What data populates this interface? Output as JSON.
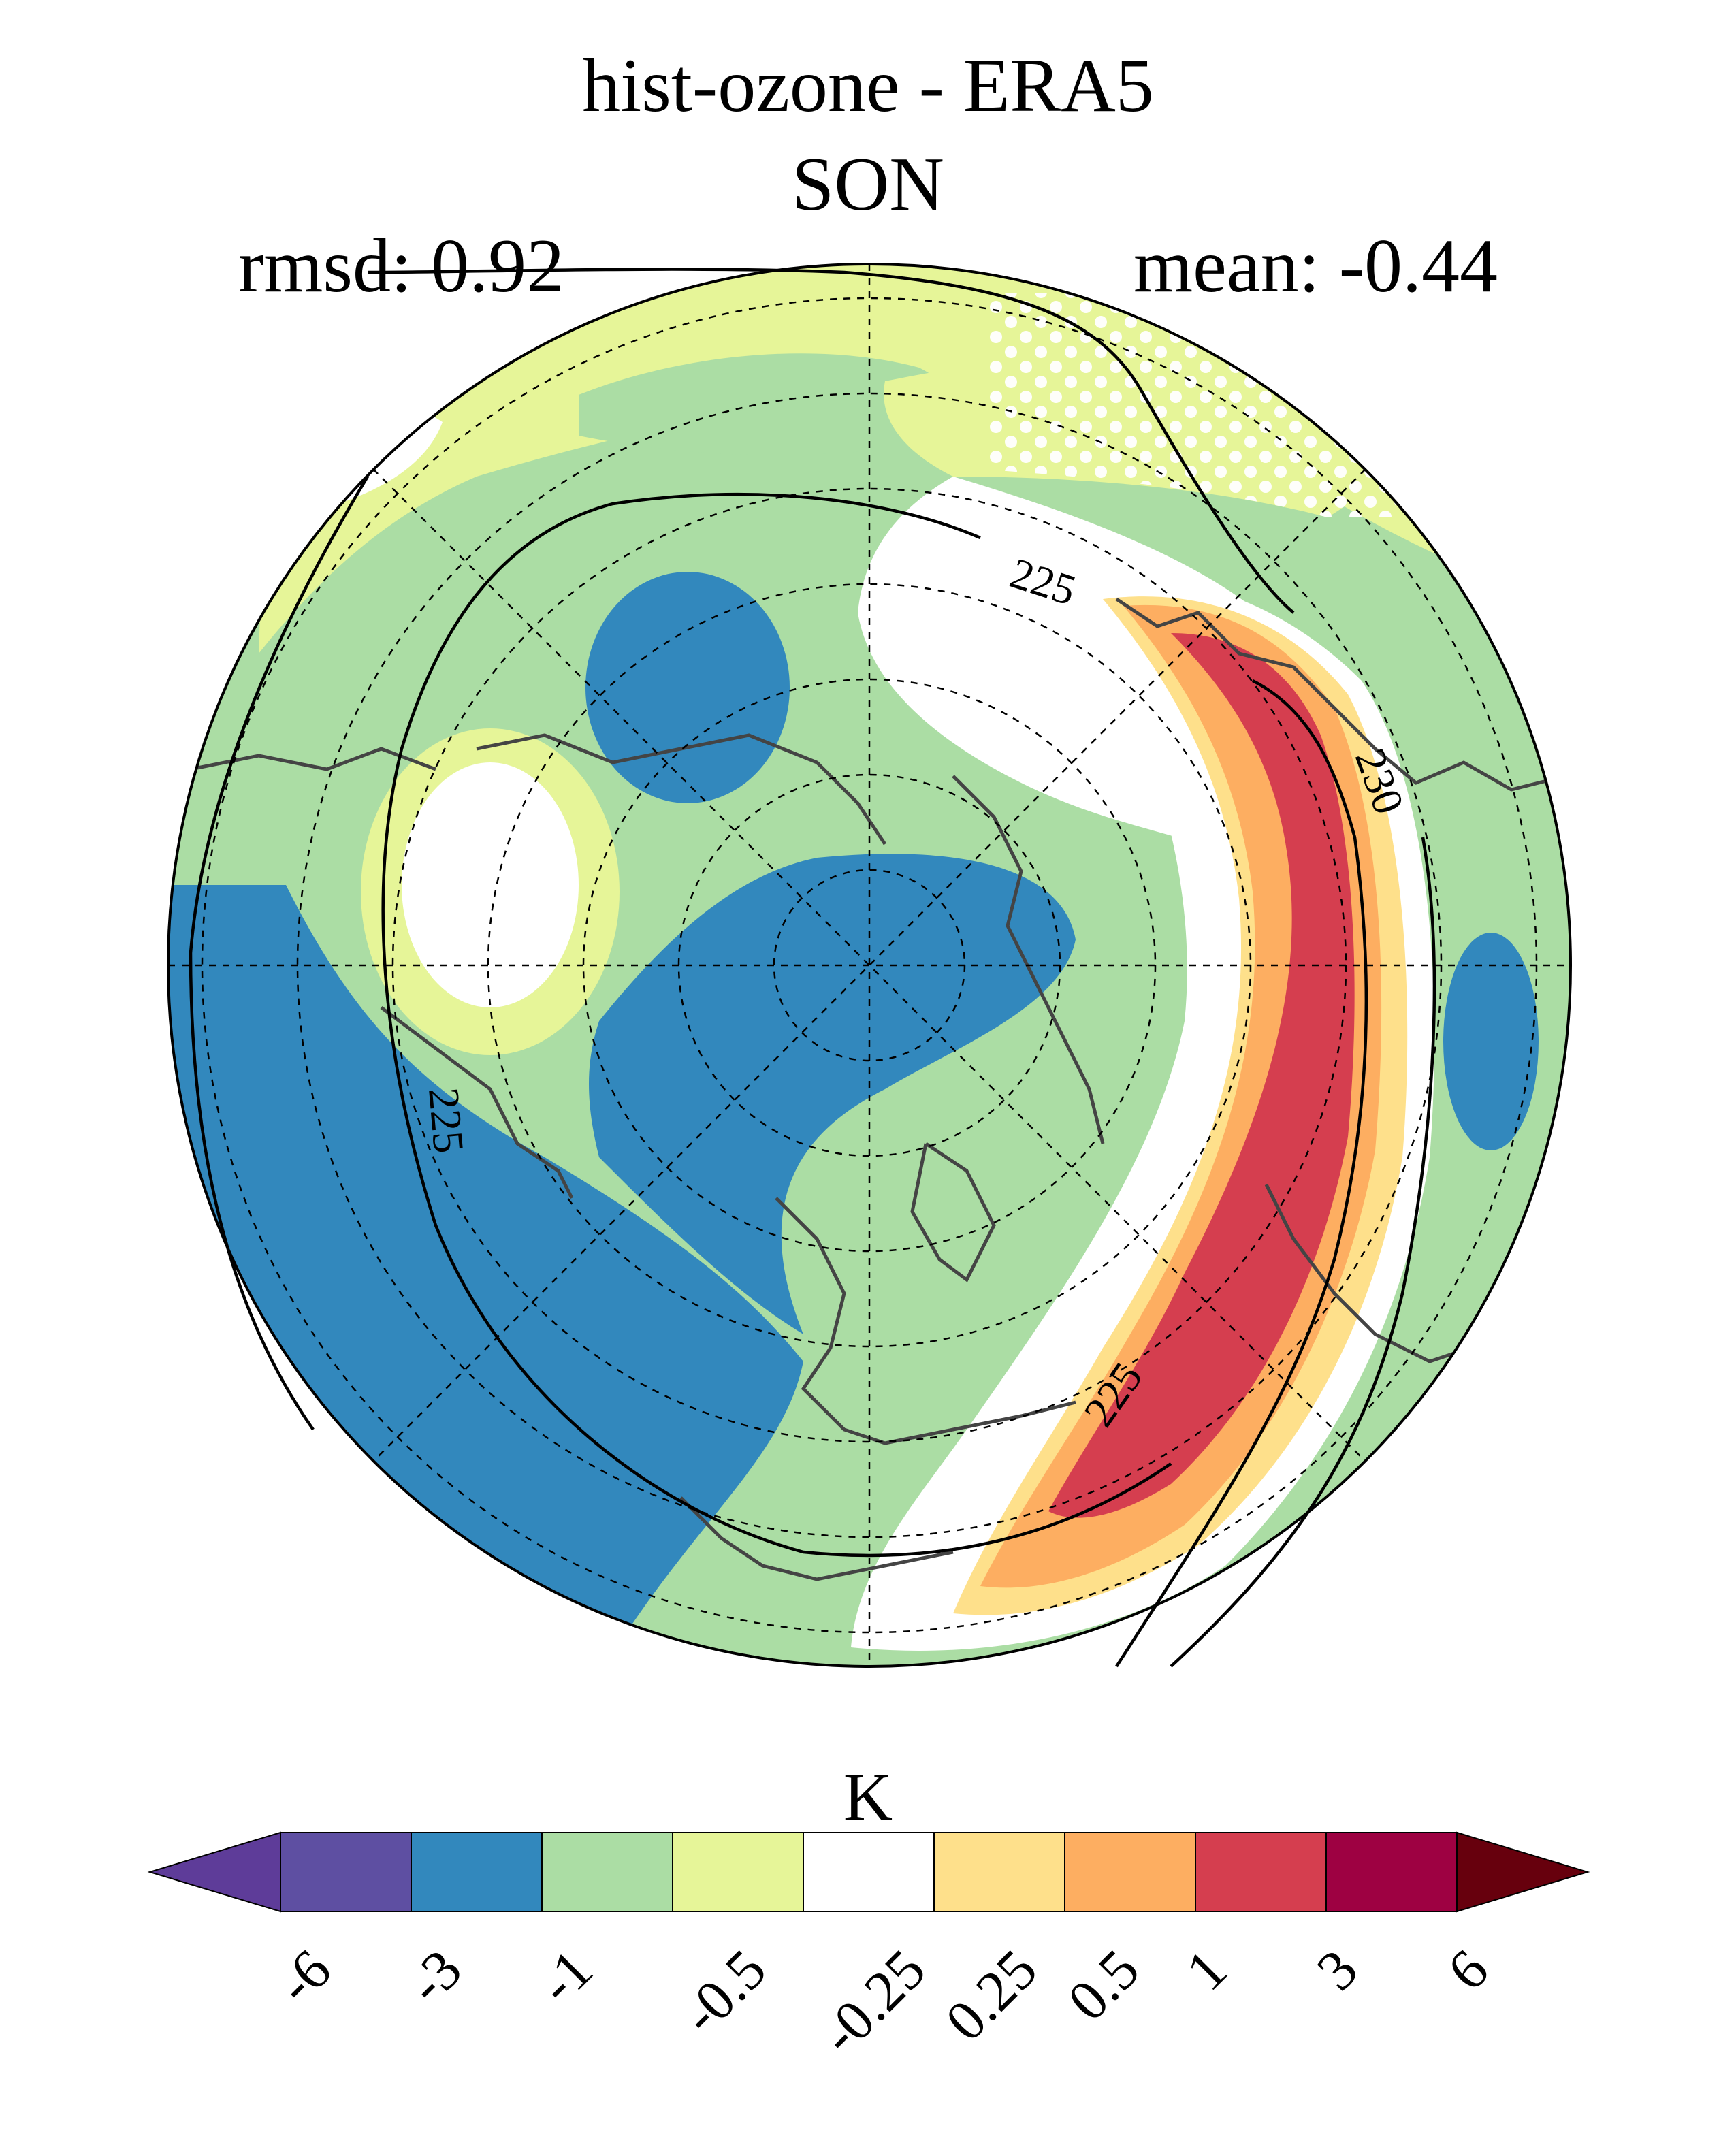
{
  "title": "hist-ozone - ERA5",
  "season": "SON",
  "stats": {
    "rmsd_label": "rmsd: 0.92",
    "mean_label": "mean: -0.44"
  },
  "contour_labels": [
    "225",
    "230",
    "225",
    "225"
  ],
  "colorbar": {
    "unit": "K",
    "ticks": [
      "-6",
      "-3",
      "-1",
      "-0.5",
      "-0.25",
      "0.25",
      "0.5",
      "1",
      "3",
      "6"
    ],
    "colors": [
      "#5e3c99",
      "#5e4fa2",
      "#3288bd",
      "#abdda4",
      "#e6f598",
      "#ffffff",
      "#fee08b",
      "#fdae61",
      "#d53e4f",
      "#9e0142",
      "#67000d"
    ]
  }
}
